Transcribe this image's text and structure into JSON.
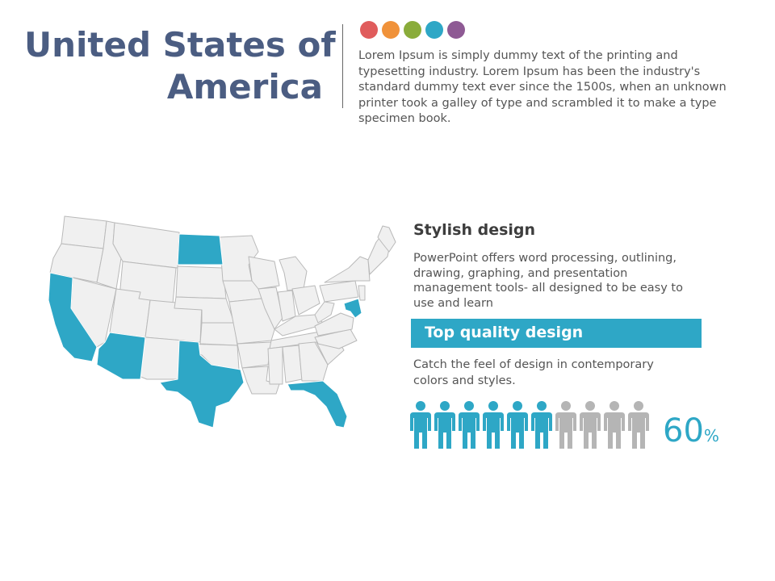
{
  "header": {
    "title_line1": "United States of",
    "title_line2": "America",
    "intro": "Lorem Ipsum is simply dummy text of the printing and typesetting industry. Lorem Ipsum has been the industry's standard dummy text ever since the 1500s, when an unknown printer took a galley of type and scrambled it to make a type specimen book.",
    "dot_colors": [
      "#e05c5c",
      "#f0923a",
      "#8aac3b",
      "#2ea7c6",
      "#8e5a94"
    ]
  },
  "map": {
    "highlight_color": "#2ea7c6",
    "base_color": "#f0f0f0",
    "border_color": "#b9b9b9",
    "highlighted_states": [
      "California",
      "Arizona",
      "Texas",
      "Florida",
      "North Dakota",
      "Maryland"
    ]
  },
  "stylish": {
    "heading": "Stylish design",
    "body": "PowerPoint offers word processing, outlining, drawing, graphing, and presentation management tools- all designed to be easy to use and learn"
  },
  "quality": {
    "bar_label": "Top quality design",
    "body": "Catch the feel of design in contemporary colors and styles."
  },
  "stat": {
    "value": "60",
    "unit": "%",
    "filled": 6,
    "total": 10,
    "filled_color": "#2ea7c6",
    "empty_color": "#b5b5b5"
  }
}
